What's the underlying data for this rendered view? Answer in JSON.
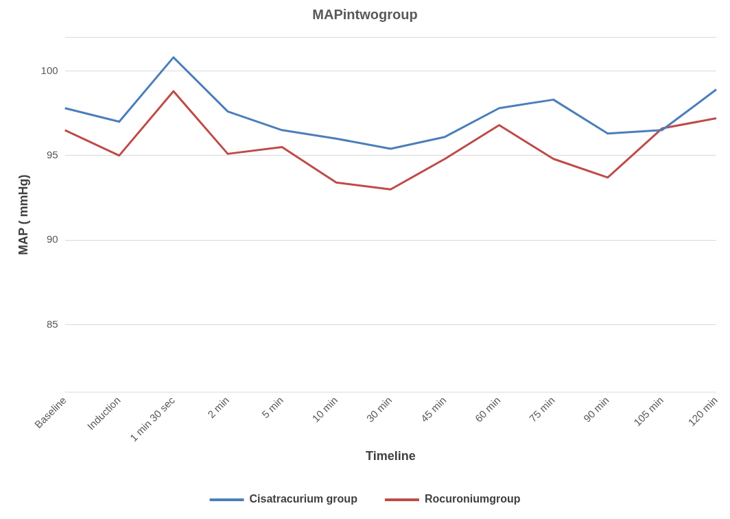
{
  "chart_data": {
    "type": "line",
    "title": "MAPintwogroup",
    "xlabel": "Timeline",
    "ylabel": "MAP ( mmHg)",
    "categories": [
      "Baseline",
      "Induction",
      "1 min 30 sec",
      "2 min",
      "5 min",
      "10 min",
      "30 min",
      "45 min",
      "60 min",
      "75 min",
      "90 min",
      "105 min",
      "120 min"
    ],
    "series": [
      {
        "name": "Cisatracurium group",
        "color": "#4a7ebb",
        "values": [
          97.8,
          97.0,
          100.8,
          97.6,
          96.5,
          96.0,
          95.4,
          96.1,
          97.8,
          98.3,
          96.3,
          96.5,
          98.9
        ]
      },
      {
        "name": "Rocuroniumgroup",
        "color": "#be4b48",
        "values": [
          96.5,
          95.0,
          98.8,
          95.1,
          95.5,
          93.4,
          93.0,
          94.8,
          96.8,
          94.8,
          93.7,
          96.6,
          97.2
        ]
      }
    ],
    "ylim": [
      81,
      102
    ],
    "yticks": [
      85,
      90,
      95,
      100
    ],
    "grid": "y",
    "legend": "bottom",
    "marker": "none",
    "line_style": "solid"
  }
}
